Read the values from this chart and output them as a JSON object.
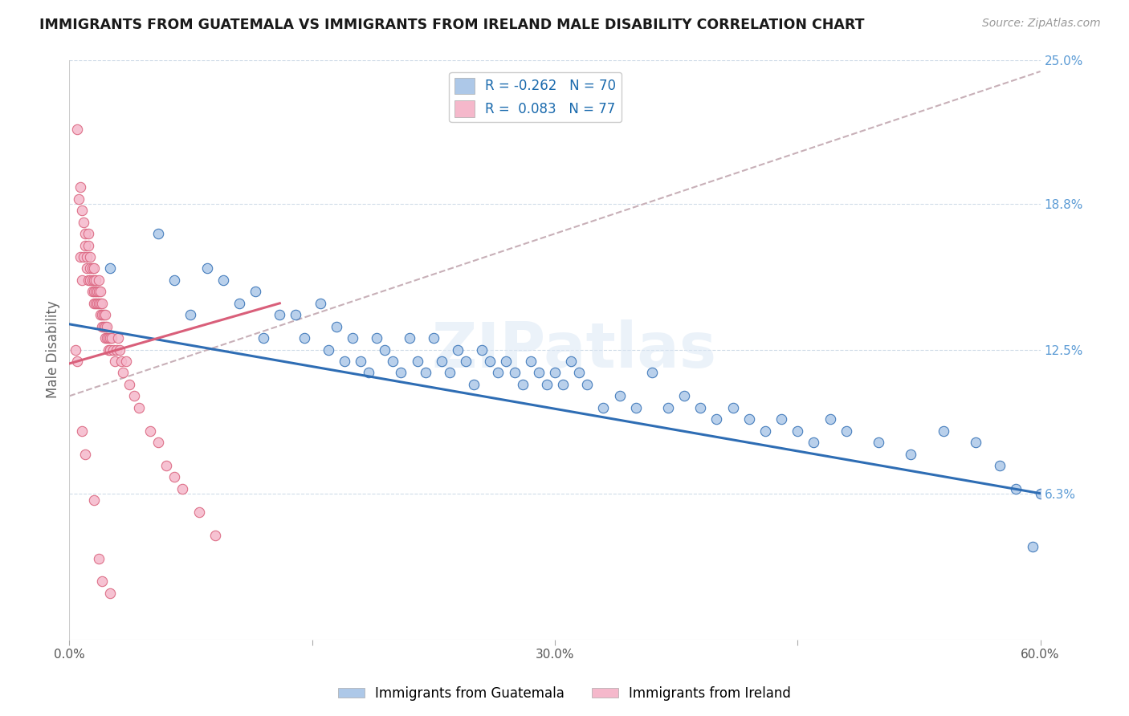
{
  "title": "IMMIGRANTS FROM GUATEMALA VS IMMIGRANTS FROM IRELAND MALE DISABILITY CORRELATION CHART",
  "source": "Source: ZipAtlas.com",
  "ylabel": "Male Disability",
  "xlim": [
    0.0,
    0.6
  ],
  "ylim": [
    0.0,
    0.25
  ],
  "yticks": [
    0.0,
    0.063,
    0.125,
    0.188,
    0.25
  ],
  "ytick_labels": [
    "",
    "6.3%",
    "12.5%",
    "18.8%",
    "25.0%"
  ],
  "xticks": [
    0.0,
    0.15,
    0.3,
    0.45,
    0.6
  ],
  "xtick_labels": [
    "0.0%",
    "",
    "30.0%",
    "",
    "60.0%"
  ],
  "legend_label1": "Immigrants from Guatemala",
  "legend_label2": "Immigrants from Ireland",
  "r1": "-0.262",
  "n1": 70,
  "r2": "0.083",
  "n2": 77,
  "color_guatemala": "#adc8e8",
  "color_ireland": "#f5b8cb",
  "color_trend_guatemala": "#2e6db4",
  "color_trend_ireland": "#d95f7a",
  "color_trend_gray": "#c8b0b8",
  "watermark": "ZIPatlas",
  "guatemala_x": [
    0.025,
    0.055,
    0.065,
    0.075,
    0.085,
    0.095,
    0.105,
    0.115,
    0.12,
    0.13,
    0.14,
    0.145,
    0.155,
    0.16,
    0.165,
    0.17,
    0.175,
    0.18,
    0.185,
    0.19,
    0.195,
    0.2,
    0.205,
    0.21,
    0.215,
    0.22,
    0.225,
    0.23,
    0.235,
    0.24,
    0.245,
    0.25,
    0.255,
    0.26,
    0.265,
    0.27,
    0.275,
    0.28,
    0.285,
    0.29,
    0.295,
    0.3,
    0.305,
    0.31,
    0.315,
    0.32,
    0.33,
    0.34,
    0.35,
    0.36,
    0.37,
    0.38,
    0.39,
    0.4,
    0.41,
    0.42,
    0.43,
    0.44,
    0.45,
    0.46,
    0.47,
    0.48,
    0.5,
    0.52,
    0.54,
    0.56,
    0.575,
    0.585,
    0.595,
    0.6
  ],
  "guatemala_y": [
    0.16,
    0.175,
    0.155,
    0.14,
    0.16,
    0.155,
    0.145,
    0.15,
    0.13,
    0.14,
    0.14,
    0.13,
    0.145,
    0.125,
    0.135,
    0.12,
    0.13,
    0.12,
    0.115,
    0.13,
    0.125,
    0.12,
    0.115,
    0.13,
    0.12,
    0.115,
    0.13,
    0.12,
    0.115,
    0.125,
    0.12,
    0.11,
    0.125,
    0.12,
    0.115,
    0.12,
    0.115,
    0.11,
    0.12,
    0.115,
    0.11,
    0.115,
    0.11,
    0.12,
    0.115,
    0.11,
    0.1,
    0.105,
    0.1,
    0.115,
    0.1,
    0.105,
    0.1,
    0.095,
    0.1,
    0.095,
    0.09,
    0.095,
    0.09,
    0.085,
    0.095,
    0.09,
    0.085,
    0.08,
    0.09,
    0.085,
    0.075,
    0.065,
    0.04,
    0.063
  ],
  "ireland_x": [
    0.004,
    0.005,
    0.006,
    0.007,
    0.007,
    0.008,
    0.008,
    0.009,
    0.009,
    0.01,
    0.01,
    0.011,
    0.011,
    0.012,
    0.012,
    0.012,
    0.013,
    0.013,
    0.013,
    0.014,
    0.014,
    0.014,
    0.015,
    0.015,
    0.015,
    0.015,
    0.016,
    0.016,
    0.016,
    0.017,
    0.017,
    0.018,
    0.018,
    0.018,
    0.019,
    0.019,
    0.019,
    0.02,
    0.02,
    0.02,
    0.021,
    0.021,
    0.022,
    0.022,
    0.022,
    0.023,
    0.023,
    0.024,
    0.024,
    0.025,
    0.025,
    0.026,
    0.027,
    0.028,
    0.029,
    0.03,
    0.031,
    0.032,
    0.033,
    0.035,
    0.037,
    0.04,
    0.043,
    0.05,
    0.055,
    0.06,
    0.065,
    0.07,
    0.08,
    0.09,
    0.005,
    0.008,
    0.01,
    0.015,
    0.018,
    0.02,
    0.025
  ],
  "ireland_y": [
    0.125,
    0.22,
    0.19,
    0.195,
    0.165,
    0.185,
    0.155,
    0.18,
    0.165,
    0.175,
    0.17,
    0.165,
    0.16,
    0.175,
    0.17,
    0.155,
    0.165,
    0.16,
    0.155,
    0.16,
    0.155,
    0.15,
    0.16,
    0.155,
    0.15,
    0.145,
    0.155,
    0.15,
    0.145,
    0.15,
    0.145,
    0.155,
    0.15,
    0.145,
    0.15,
    0.145,
    0.14,
    0.145,
    0.14,
    0.135,
    0.14,
    0.135,
    0.14,
    0.135,
    0.13,
    0.135,
    0.13,
    0.13,
    0.125,
    0.13,
    0.125,
    0.13,
    0.125,
    0.12,
    0.125,
    0.13,
    0.125,
    0.12,
    0.115,
    0.12,
    0.11,
    0.105,
    0.1,
    0.09,
    0.085,
    0.075,
    0.07,
    0.065,
    0.055,
    0.045,
    0.12,
    0.09,
    0.08,
    0.06,
    0.035,
    0.025,
    0.02
  ]
}
